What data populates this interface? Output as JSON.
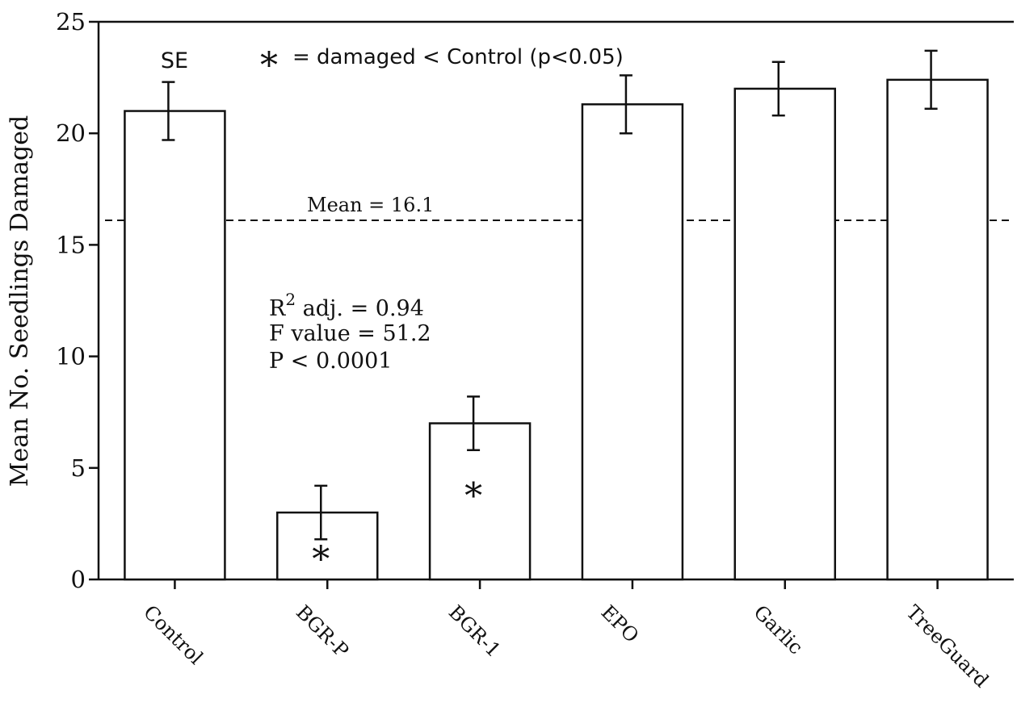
{
  "chart_data": {
    "type": "bar",
    "ylabel": "Mean No. Seedlings Damaged",
    "ylim": [
      0,
      25
    ],
    "yticks": [
      "0",
      "5",
      "10",
      "15",
      "20",
      "25"
    ],
    "categories": [
      "Control",
      "BGR-P",
      "BGR-1",
      "EPO",
      "Garlic",
      "TreeGuard"
    ],
    "values": [
      21.0,
      3.0,
      7.0,
      21.3,
      22.0,
      22.4
    ],
    "errors": [
      1.3,
      1.2,
      1.2,
      1.3,
      1.2,
      1.3
    ],
    "significant": [
      false,
      true,
      true,
      false,
      false,
      false
    ],
    "significance_marker": "*",
    "error_label": "SE",
    "legend": {
      "marker": "*",
      "text": "= damaged < Control (p<0.05)"
    },
    "mean_line": {
      "value": 16.1,
      "label": "Mean = 16.1"
    },
    "stats": {
      "r2_prefix": "R",
      "r2_sup": "2",
      "r2_rest": " adj. = 0.94",
      "f_value": "F value = 51.2",
      "p_value": "P < 0.0001"
    },
    "grid": false
  }
}
